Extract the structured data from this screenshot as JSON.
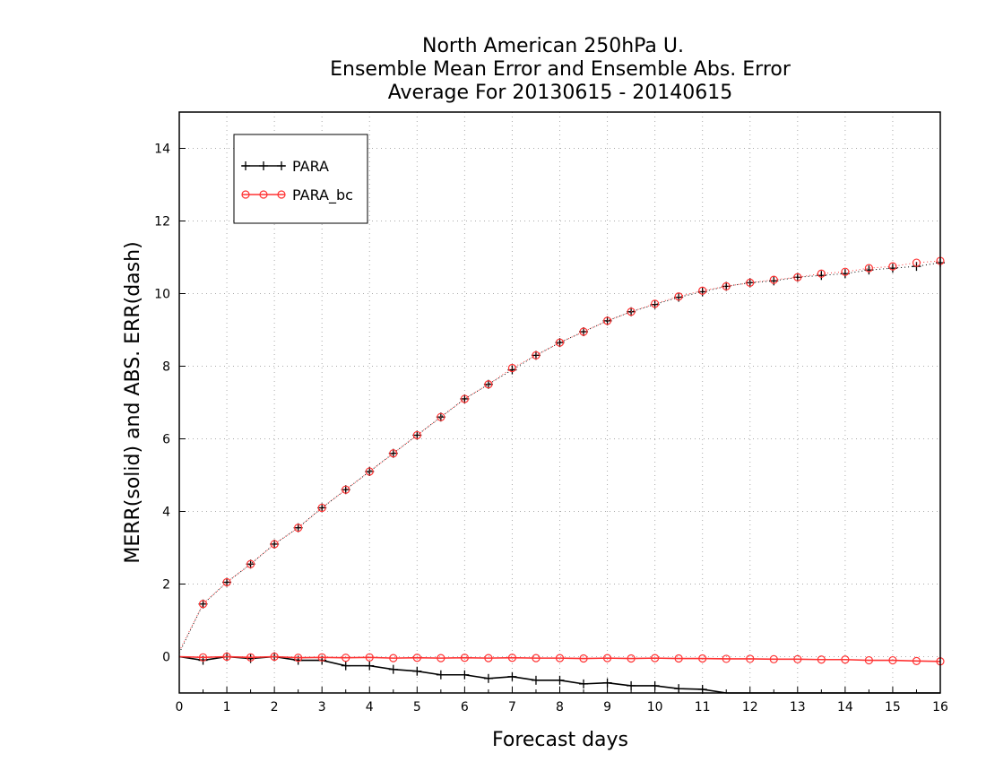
{
  "chart_data": {
    "type": "line",
    "title_lines": [
      "North American 250hPa U.",
      "Ensemble Mean Error and Ensemble Abs. Error",
      "Average For 20130615 - 20140615"
    ],
    "xlabel": "Forecast days",
    "ylabel": "MERR(solid) and ABS. ERR(dash)",
    "xlim": [
      0,
      16
    ],
    "ylim": [
      -1,
      15
    ],
    "xticks": [
      0,
      1,
      2,
      3,
      4,
      5,
      6,
      7,
      8,
      9,
      10,
      11,
      12,
      13,
      14,
      15,
      16
    ],
    "yticks": [
      0,
      2,
      4,
      6,
      8,
      10,
      12,
      14
    ],
    "grid": true,
    "legend_position": "top-left",
    "x": [
      0,
      0.5,
      1,
      1.5,
      2,
      2.5,
      3,
      3.5,
      4,
      4.5,
      5,
      5.5,
      6,
      6.5,
      7,
      7.5,
      8,
      8.5,
      9,
      9.5,
      10,
      10.5,
      11,
      11.5,
      12,
      12.5,
      13,
      13.5,
      14,
      14.5,
      15,
      15.5,
      16
    ],
    "series": [
      {
        "name": "PARA",
        "color": "#000000",
        "marker": "plus",
        "merr": [
          0.0,
          -0.1,
          0.0,
          -0.05,
          0.0,
          -0.1,
          -0.1,
          -0.25,
          -0.25,
          -0.35,
          -0.4,
          -0.5,
          -0.5,
          -0.6,
          -0.55,
          -0.65,
          -0.65,
          -0.75,
          -0.72,
          -0.8,
          -0.8,
          -0.88,
          -0.9,
          -1.0,
          -1.0,
          -1.0,
          -1.0,
          -1.0,
          -1.0,
          -1.0,
          -1.0,
          -1.0,
          -1.0
        ],
        "abs_err": [
          0.1,
          1.45,
          2.05,
          2.55,
          3.1,
          3.55,
          4.1,
          4.6,
          5.1,
          5.6,
          6.1,
          6.6,
          7.1,
          7.5,
          7.9,
          8.3,
          8.65,
          8.95,
          9.25,
          9.5,
          9.7,
          9.9,
          10.05,
          10.2,
          10.3,
          10.35,
          10.45,
          10.5,
          10.55,
          10.65,
          10.7,
          10.75,
          10.85
        ]
      },
      {
        "name": "PARA_bc",
        "color": "#ff3333",
        "marker": "circle",
        "merr": [
          0.0,
          -0.02,
          0.0,
          -0.02,
          0.0,
          -0.03,
          -0.02,
          -0.03,
          -0.02,
          -0.04,
          -0.03,
          -0.04,
          -0.03,
          -0.04,
          -0.03,
          -0.04,
          -0.04,
          -0.05,
          -0.04,
          -0.05,
          -0.04,
          -0.05,
          -0.05,
          -0.06,
          -0.06,
          -0.07,
          -0.07,
          -0.08,
          -0.08,
          -0.1,
          -0.1,
          -0.12,
          -0.13
        ],
        "abs_err": [
          0.15,
          1.45,
          2.05,
          2.55,
          3.1,
          3.55,
          4.1,
          4.6,
          5.1,
          5.6,
          6.1,
          6.6,
          7.1,
          7.5,
          7.95,
          8.3,
          8.65,
          8.95,
          9.25,
          9.5,
          9.72,
          9.92,
          10.08,
          10.2,
          10.3,
          10.38,
          10.45,
          10.55,
          10.6,
          10.7,
          10.75,
          10.85,
          10.9
        ]
      }
    ]
  }
}
